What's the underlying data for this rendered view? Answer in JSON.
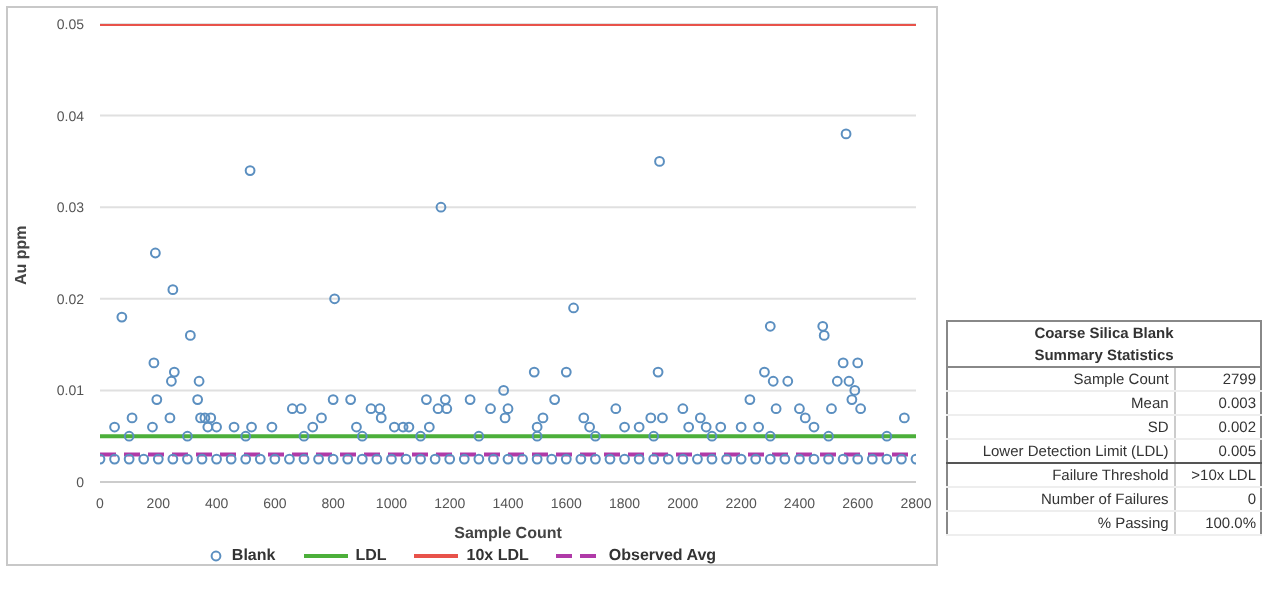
{
  "chart_data": {
    "type": "scatter",
    "xlabel": "Sample Count",
    "ylabel": "Au ppm",
    "xlim": [
      0,
      2800
    ],
    "xticks": [
      0,
      200,
      400,
      600,
      800,
      1000,
      1200,
      1400,
      1600,
      1800,
      2000,
      2200,
      2400,
      2600,
      2800
    ],
    "ylim": [
      0,
      0.05
    ],
    "yticks": [
      0,
      0.01,
      0.02,
      0.03,
      0.04,
      0.05
    ],
    "grid": "y",
    "legend": "bottom",
    "series": [
      {
        "name": "Blank",
        "marker": "circle",
        "color": "#5b8fc0",
        "x": [
          0,
          50,
          100,
          150,
          200,
          250,
          300,
          350,
          400,
          450,
          500,
          550,
          600,
          650,
          700,
          750,
          800,
          850,
          900,
          950,
          1000,
          1050,
          1100,
          1150,
          1200,
          1250,
          1300,
          1350,
          1400,
          1450,
          1500,
          1550,
          1600,
          1650,
          1700,
          1750,
          1800,
          1850,
          1900,
          1950,
          2000,
          2050,
          2100,
          2150,
          2200,
          2250,
          2300,
          2350,
          2400,
          2450,
          2500,
          2550,
          2600,
          2650,
          2700,
          2750,
          2800,
          100,
          300,
          500,
          700,
          900,
          1100,
          1300,
          1500,
          1700,
          1900,
          2100,
          2300,
          2500,
          2700,
          75,
          50,
          110,
          190,
          185,
          195,
          180,
          250,
          245,
          255,
          240,
          310,
          340,
          335,
          345,
          360,
          370,
          380,
          400,
          460,
          515,
          520,
          590,
          660,
          690,
          730,
          760,
          800,
          805,
          860,
          880,
          930,
          960,
          965,
          1010,
          1040,
          1060,
          1120,
          1130,
          1160,
          1170,
          1185,
          1190,
          1270,
          1340,
          1385,
          1390,
          1400,
          1490,
          1500,
          1520,
          1560,
          1600,
          1625,
          1660,
          1680,
          1770,
          1800,
          1850,
          1890,
          1920,
          1915,
          1930,
          2000,
          2020,
          2060,
          2080,
          2130,
          2200,
          2230,
          2260,
          2280,
          2300,
          2310,
          2320,
          2360,
          2400,
          2420,
          2450,
          2480,
          2485,
          2510,
          2530,
          2550,
          2560,
          2570,
          2580,
          2590,
          2600,
          2610,
          2760
        ],
        "values": [
          0.0025,
          0.0025,
          0.0025,
          0.0025,
          0.0025,
          0.0025,
          0.0025,
          0.0025,
          0.0025,
          0.0025,
          0.0025,
          0.0025,
          0.0025,
          0.0025,
          0.0025,
          0.0025,
          0.0025,
          0.0025,
          0.0025,
          0.0025,
          0.0025,
          0.0025,
          0.0025,
          0.0025,
          0.0025,
          0.0025,
          0.0025,
          0.0025,
          0.0025,
          0.0025,
          0.0025,
          0.0025,
          0.0025,
          0.0025,
          0.0025,
          0.0025,
          0.0025,
          0.0025,
          0.0025,
          0.0025,
          0.0025,
          0.0025,
          0.0025,
          0.0025,
          0.0025,
          0.0025,
          0.0025,
          0.0025,
          0.0025,
          0.0025,
          0.0025,
          0.0025,
          0.0025,
          0.0025,
          0.0025,
          0.0025,
          0.0025,
          0.005,
          0.005,
          0.005,
          0.005,
          0.005,
          0.005,
          0.005,
          0.005,
          0.005,
          0.005,
          0.005,
          0.005,
          0.005,
          0.005,
          0.018,
          0.006,
          0.007,
          0.025,
          0.013,
          0.009,
          0.006,
          0.021,
          0.011,
          0.012,
          0.007,
          0.016,
          0.011,
          0.009,
          0.007,
          0.007,
          0.006,
          0.007,
          0.006,
          0.006,
          0.034,
          0.006,
          0.006,
          0.008,
          0.008,
          0.006,
          0.007,
          0.009,
          0.02,
          0.009,
          0.006,
          0.008,
          0.008,
          0.007,
          0.006,
          0.006,
          0.006,
          0.009,
          0.006,
          0.008,
          0.03,
          0.009,
          0.008,
          0.009,
          0.008,
          0.01,
          0.007,
          0.008,
          0.012,
          0.006,
          0.007,
          0.009,
          0.012,
          0.019,
          0.007,
          0.006,
          0.008,
          0.006,
          0.006,
          0.007,
          0.035,
          0.012,
          0.007,
          0.008,
          0.006,
          0.007,
          0.006,
          0.006,
          0.006,
          0.009,
          0.006,
          0.012,
          0.017,
          0.011,
          0.008,
          0.011,
          0.008,
          0.007,
          0.006,
          0.017,
          0.016,
          0.008,
          0.011,
          0.013,
          0.038,
          0.011,
          0.009,
          0.01,
          0.013,
          0.008,
          0.007
        ]
      },
      {
        "name": "LDL",
        "type": "line",
        "color": "#4caf3a",
        "line_style": "solid",
        "x": [
          0,
          2800
        ],
        "values": [
          0.005,
          0.005
        ]
      },
      {
        "name": "10x LDL",
        "type": "line",
        "color": "#e8524a",
        "line_style": "solid",
        "x": [
          0,
          2800
        ],
        "values": [
          0.05,
          0.05
        ]
      },
      {
        "name": "Observed Avg",
        "type": "line",
        "color": "#b03aa8",
        "line_style": "dashed",
        "x": [
          0,
          2800
        ],
        "values": [
          0.003,
          0.003
        ]
      }
    ],
    "annotations": [
      "Coarse Silica Blank",
      "Summary Statistics",
      "Sample Count",
      "2799",
      "Mean",
      "0.003",
      "SD",
      "0.002",
      "Lower Detection Limit (LDL)",
      "0.005",
      "Failure Threshold",
      ">10x LDL",
      "Number of Failures",
      "0",
      "% Passing",
      "100.0%"
    ]
  }
}
